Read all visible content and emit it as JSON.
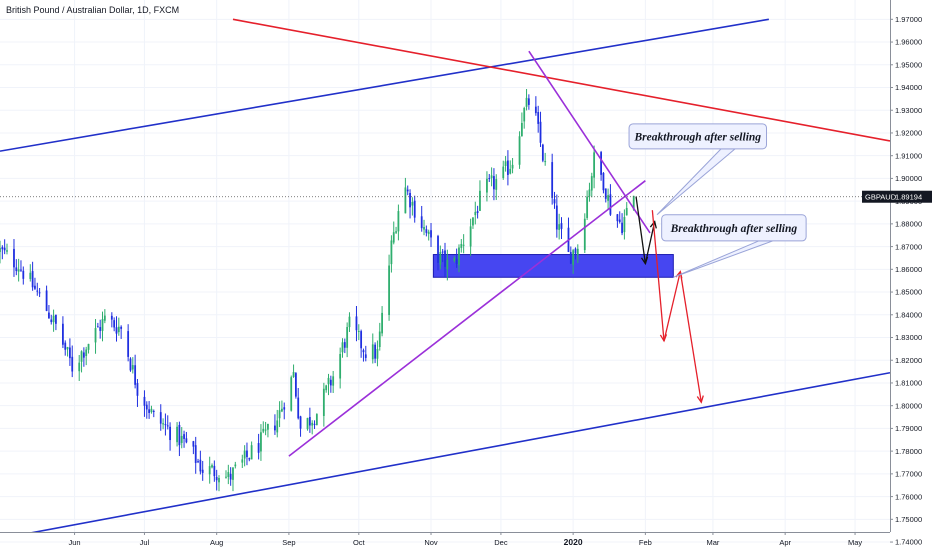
{
  "header": {
    "title": "British Pound / Australian Dollar, 1D, FXCM"
  },
  "chart_data": {
    "type": "candlestick",
    "title": "British Pound / Australian Dollar, 1D, FXCM",
    "symbol": "GBPAUD",
    "last_price": "1.89194",
    "last_price_label": "1.89194",
    "y_ticks": [
      "1.97000",
      "1.96000",
      "1.95000",
      "1.94000",
      "1.93000",
      "1.92000",
      "1.91000",
      "1.90000",
      "1.89000",
      "1.88000",
      "1.87000",
      "1.86000",
      "1.85000",
      "1.84000",
      "1.83000",
      "1.82000",
      "1.81000",
      "1.80000",
      "1.79000",
      "1.78000",
      "1.77000",
      "1.76000",
      "1.75000",
      "1.74000"
    ],
    "ylim": [
      1.7365,
      1.9785
    ],
    "x_ticks": [
      {
        "label": "Jun",
        "date": "2019-06-01"
      },
      {
        "label": "Jul",
        "date": "2019-07-01"
      },
      {
        "label": "Aug",
        "date": "2019-08-01"
      },
      {
        "label": "Sep",
        "date": "2019-09-01"
      },
      {
        "label": "Oct",
        "date": "2019-10-01"
      },
      {
        "label": "Nov",
        "date": "2019-11-01"
      },
      {
        "label": "Dec",
        "date": "2019-12-01"
      },
      {
        "label": "2020",
        "date": "2020-01-01",
        "bold": true
      },
      {
        "label": "Feb",
        "date": "2020-02-01"
      },
      {
        "label": "Mar",
        "date": "2020-03-01"
      },
      {
        "label": "Apr",
        "date": "2020-04-01"
      },
      {
        "label": "May",
        "date": "2020-05-01"
      }
    ],
    "xlim": [
      "2019-04-30",
      "2020-05-16"
    ],
    "price_path": [
      [
        "2019-04-30",
        1.868
      ],
      [
        "2019-05-08",
        1.862
      ],
      [
        "2019-05-17",
        1.848
      ],
      [
        "2019-05-24",
        1.835
      ],
      [
        "2019-05-31",
        1.817
      ],
      [
        "2019-06-07",
        1.828
      ],
      [
        "2019-06-14",
        1.838
      ],
      [
        "2019-06-21",
        1.834
      ],
      [
        "2019-06-28",
        1.808
      ],
      [
        "2019-07-05",
        1.795
      ],
      [
        "2019-07-12",
        1.789
      ],
      [
        "2019-07-19",
        1.783
      ],
      [
        "2019-07-26",
        1.772
      ],
      [
        "2019-08-02",
        1.771
      ],
      [
        "2019-08-06",
        1.768
      ],
      [
        "2019-08-13",
        1.776
      ],
      [
        "2019-08-20",
        1.784
      ],
      [
        "2019-08-27",
        1.794
      ],
      [
        "2019-09-03",
        1.814
      ],
      [
        "2019-09-06",
        1.79
      ],
      [
        "2019-09-13",
        1.797
      ],
      [
        "2019-09-20",
        1.813
      ],
      [
        "2019-09-27",
        1.835
      ],
      [
        "2019-10-04",
        1.824
      ],
      [
        "2019-10-09",
        1.823
      ],
      [
        "2019-10-15",
        1.87
      ],
      [
        "2019-10-20",
        1.898
      ],
      [
        "2019-10-27",
        1.882
      ],
      [
        "2019-11-03",
        1.867
      ],
      [
        "2019-11-10",
        1.86
      ],
      [
        "2019-11-17",
        1.878
      ],
      [
        "2019-11-24",
        1.895
      ],
      [
        "2019-12-01",
        1.9
      ],
      [
        "2019-12-06",
        1.908
      ],
      [
        "2019-12-10",
        1.927
      ],
      [
        "2019-12-14",
        1.936
      ],
      [
        "2019-12-20",
        1.905
      ],
      [
        "2019-12-25",
        1.88
      ],
      [
        "2019-12-30",
        1.866
      ],
      [
        "2020-01-03",
        1.87
      ],
      [
        "2020-01-07",
        1.892
      ],
      [
        "2020-01-10",
        1.908
      ],
      [
        "2020-01-14",
        1.899
      ],
      [
        "2020-01-18",
        1.883
      ],
      [
        "2020-01-22",
        1.88
      ],
      [
        "2020-01-27",
        1.892
      ]
    ],
    "trendlines": [
      {
        "color": "#2130c9",
        "from": [
          "2019-04-30",
          1.912
        ],
        "to": [
          "2020-03-25",
          1.97
        ]
      },
      {
        "color": "#2130c9",
        "from": [
          "2019-04-30",
          1.7415
        ],
        "to": [
          "2020-05-16",
          1.8145
        ]
      },
      {
        "color": "#e5202b",
        "from": [
          "2019-08-08",
          1.97
        ],
        "to": [
          "2020-05-16",
          1.9165
        ]
      },
      {
        "color": "#9b30d9",
        "from": [
          "2019-09-01",
          1.7778
        ],
        "to": [
          "2020-02-01",
          1.899
        ]
      },
      {
        "color": "#9b30d9",
        "from": [
          "2019-12-13",
          1.956
        ],
        "to": [
          "2020-02-03",
          1.876
        ]
      }
    ],
    "zone": {
      "color": "#3c3cf0",
      "from": [
        "2019-11-02",
        1.8665
      ],
      "to": [
        "2020-02-13",
        1.8565
      ]
    },
    "projection_arrows": [
      {
        "color": "#111111",
        "path": [
          [
            "2020-01-28",
            1.892
          ],
          [
            "2020-02-01",
            1.8625
          ],
          [
            "2020-02-05",
            1.881
          ]
        ]
      },
      {
        "color": "#e5202b",
        "path": [
          [
            "2020-02-04",
            1.886
          ],
          [
            "2020-02-09",
            1.8285
          ],
          [
            "2020-02-16",
            1.859
          ],
          [
            "2020-02-25",
            1.8015
          ]
        ]
      }
    ],
    "annotations": [
      {
        "text": "Breakthrough after selling",
        "box_from": [
          "2020-01-25",
          1.924
        ],
        "box_to": [
          "2020-03-24",
          1.913
        ],
        "pointer": [
          "2020-02-06",
          1.884
        ]
      },
      {
        "text": "Breakthrough after selling",
        "box_from": [
          "2020-02-08",
          1.884
        ],
        "box_to": [
          "2020-04-10",
          1.8725
        ],
        "pointer": [
          "2020-02-13",
          1.8565
        ]
      }
    ]
  }
}
